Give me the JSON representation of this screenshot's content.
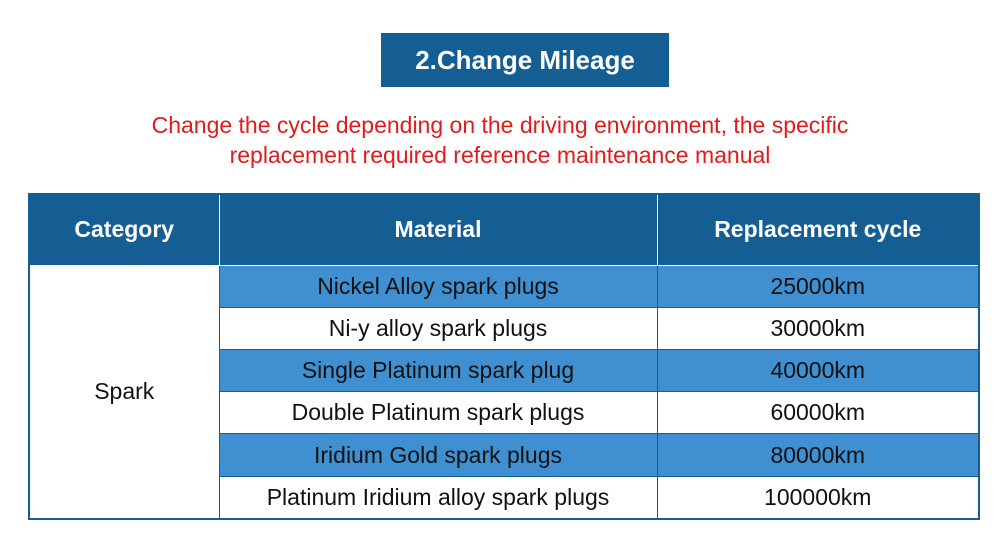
{
  "header": {
    "title": "2.Change Mileage",
    "subtitle": [
      "Change the cycle depending on the driving environment, the specific",
      "replacement required reference maintenance manual"
    ]
  },
  "table": {
    "columns": [
      "Category",
      "Material",
      "Replacement cycle"
    ],
    "category": "Spark",
    "rows": [
      [
        "Nickel Alloy spark plugs",
        "25000km"
      ],
      [
        "Ni-y alloy spark plugs",
        "30000km"
      ],
      [
        "Single Platinum spark plug",
        "40000km"
      ],
      [
        "Double Platinum spark plugs",
        "60000km"
      ],
      [
        "Iridium Gold spark plugs",
        "80000km"
      ],
      [
        "Platinum Iridium alloy spark plugs",
        "100000km"
      ]
    ]
  }
}
